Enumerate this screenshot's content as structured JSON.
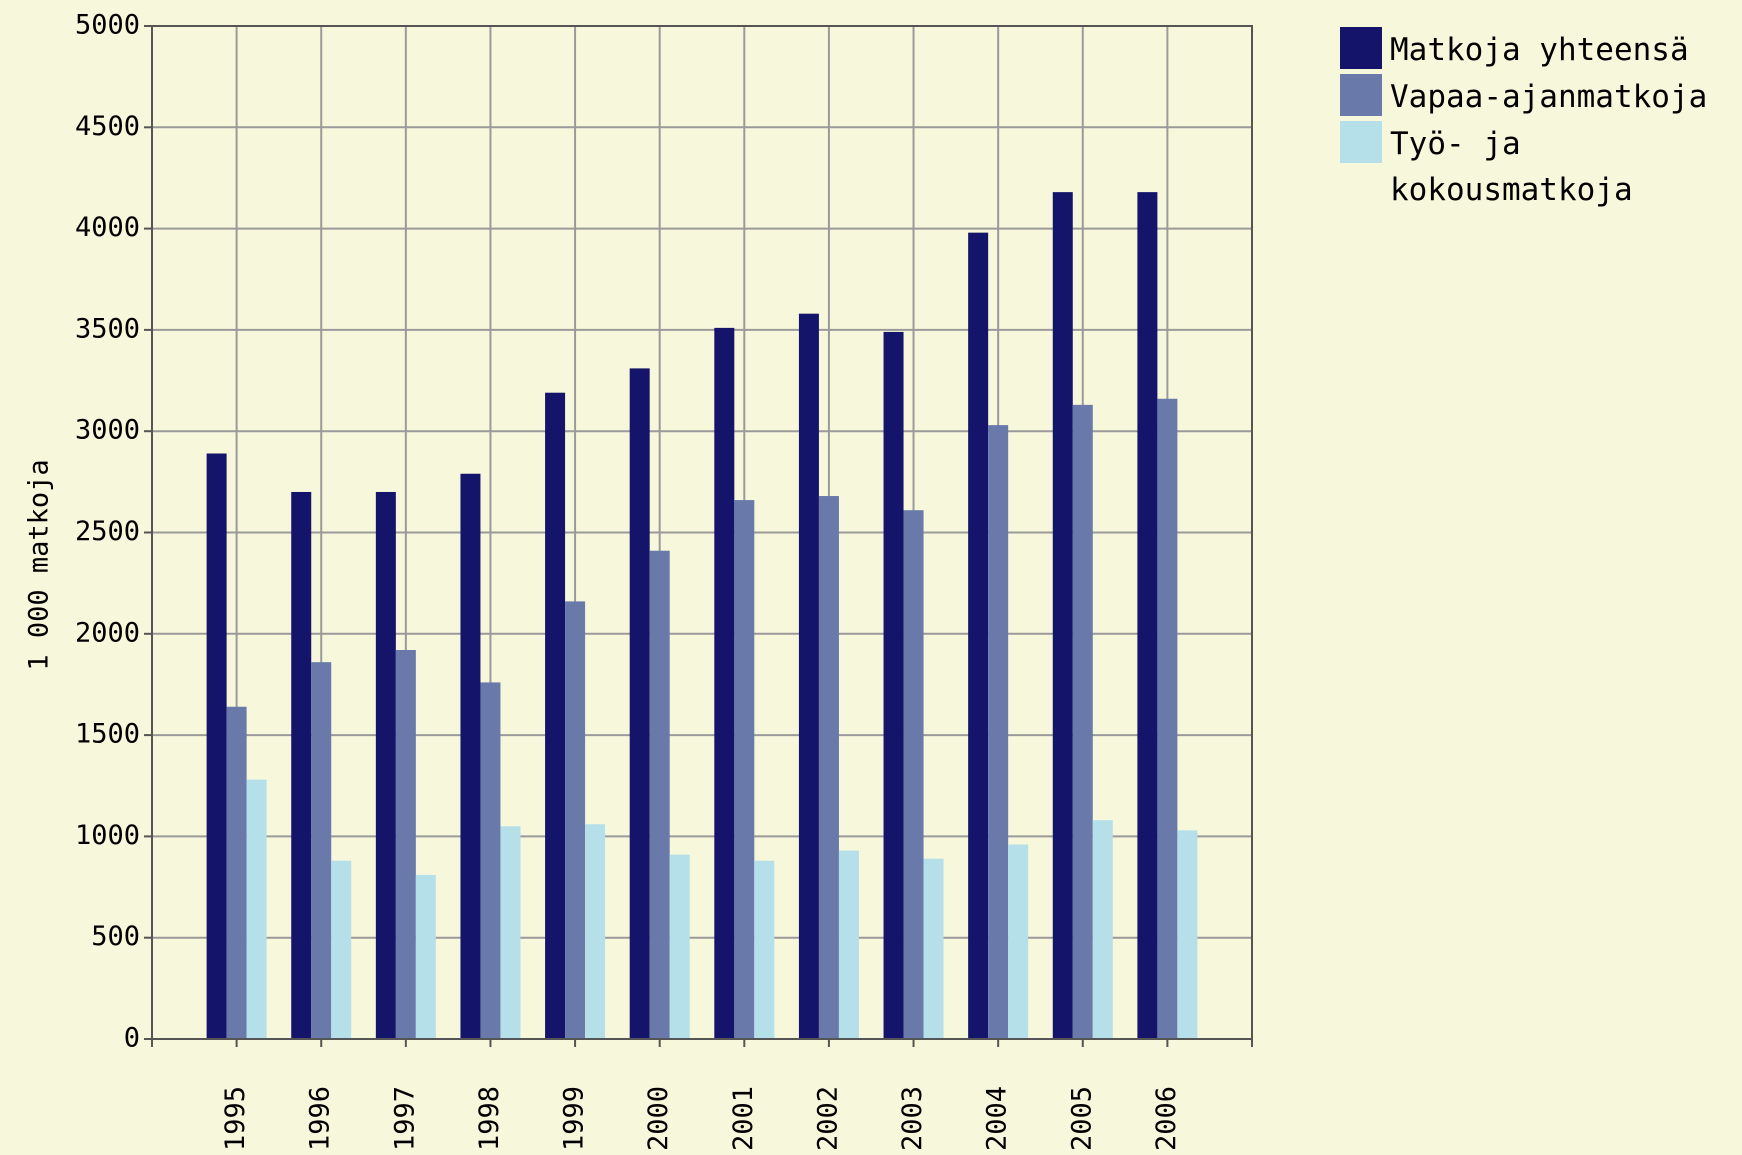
{
  "chart_data": {
    "type": "bar",
    "y_label": "1 000 matkoja",
    "categories": [
      "1995",
      "1996",
      "1997",
      "1998",
      "1999",
      "2000",
      "2001",
      "2002",
      "2003",
      "2004",
      "2005",
      "2006"
    ],
    "series": [
      {
        "name": "Matkoja yhteensä",
        "color": "#14146b",
        "values": [
          2890,
          2700,
          2700,
          2790,
          3190,
          3310,
          3510,
          3580,
          3490,
          3980,
          4180,
          4180
        ]
      },
      {
        "name": "Vapaa-ajanmatkoja",
        "color": "#6879aa",
        "values": [
          1640,
          1860,
          1920,
          1760,
          2160,
          2410,
          2660,
          2680,
          2610,
          3030,
          3130,
          3160
        ]
      },
      {
        "name": "Työ- ja kokousmatkoja",
        "color": "#b5e0ea",
        "values": [
          1280,
          880,
          810,
          1050,
          1060,
          910,
          880,
          930,
          890,
          960,
          1080,
          1030
        ]
      }
    ],
    "ylim": [
      0,
      5000
    ],
    "yticks": [
      0,
      500,
      1000,
      1500,
      2000,
      2500,
      3000,
      3500,
      4000,
      4500,
      5000
    ],
    "grid": true,
    "legend": "right"
  }
}
